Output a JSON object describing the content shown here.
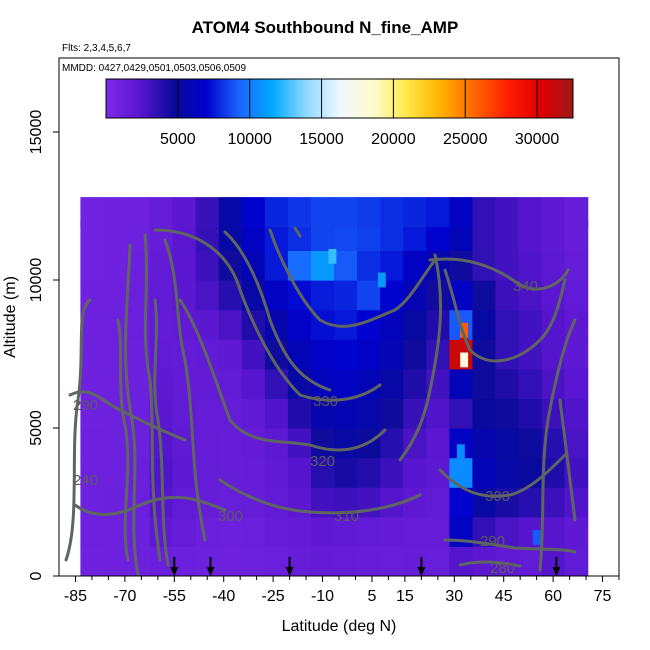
{
  "title": "ATOM4 Southbound N_fine_AMP",
  "flights": "Flts: 2,3,4,5,6,7",
  "chart_data": {
    "type": "heatmap",
    "title": "ATOM4 Southbound N_fine_AMP",
    "xlabel": "Latitude (deg N)",
    "ylabel": "Altitude (m)",
    "xlim": [
      -90,
      80
    ],
    "ylim": [
      0,
      17500
    ],
    "x_ticks": [
      -85,
      -70,
      -55,
      -40,
      -25,
      -10,
      5,
      15,
      30,
      45,
      60,
      75
    ],
    "y_ticks": [
      0,
      5000,
      10000,
      15000
    ],
    "legend_text": "MMDD: 0427,0429,0501,0503,0506,0509",
    "colorbar": {
      "range": [
        0,
        32500
      ],
      "ticks": [
        5000,
        10000,
        15000,
        20000,
        25000,
        30000
      ],
      "colors": [
        "#7b2ae8",
        "#5a16d0",
        "#0a0a9a",
        "#0000cc",
        "#1a66ff",
        "#00aaff",
        "#8fd8ff",
        "#f0f8ff",
        "#fffbd0",
        "#ffe94a",
        "#ffb300",
        "#ff6a00",
        "#ff2000",
        "#e00000",
        "#a01818"
      ]
    },
    "contour_labels": [
      "290",
      "240",
      "300",
      "310",
      "320",
      "330",
      "340",
      "300",
      "290",
      "280"
    ],
    "flight_markers_lat": [
      -55,
      -44,
      -20,
      20,
      61
    ],
    "field": {
      "lat": [
        -80,
        -73,
        -66,
        -59,
        -52,
        -45,
        -38,
        -31,
        -24,
        -17,
        -10,
        -3,
        4,
        11,
        18,
        25,
        32,
        39,
        46,
        53,
        60,
        67
      ],
      "alt": [
        500,
        1500,
        2500,
        3500,
        4500,
        5500,
        6500,
        7500,
        8500,
        9500,
        10500,
        11500,
        12300
      ],
      "values": [
        [
          900,
          1000,
          1100,
          1300,
          1200,
          1100,
          1000,
          1100,
          1300,
          1500,
          1700,
          1600,
          1500,
          1400,
          1500,
          1400,
          2500,
          2200,
          1900,
          1800,
          2500,
          1800
        ],
        [
          1000,
          1100,
          1200,
          2000,
          1600,
          1300,
          1200,
          1300,
          1500,
          1700,
          2000,
          1900,
          1800,
          1700,
          1600,
          1600,
          6500,
          3500,
          2800,
          2500,
          2400,
          2000
        ],
        [
          1100,
          1200,
          1300,
          2400,
          1800,
          1500,
          1400,
          1500,
          1800,
          2200,
          3000,
          3200,
          3000,
          2500,
          2000,
          1800,
          7000,
          5000,
          4200,
          3800,
          3200,
          2600
        ],
        [
          1000,
          1100,
          1300,
          2600,
          2000,
          1600,
          1500,
          1600,
          1900,
          2500,
          3800,
          4200,
          3900,
          3200,
          2400,
          2100,
          10500,
          6000,
          5200,
          4800,
          4000,
          3000
        ],
        [
          1000,
          1100,
          1200,
          2500,
          1900,
          1600,
          1500,
          1700,
          2100,
          3000,
          4500,
          5000,
          4600,
          3800,
          2800,
          2300,
          6500,
          5500,
          5000,
          4500,
          3800,
          2800
        ],
        [
          900,
          1000,
          1200,
          2200,
          1800,
          1600,
          1600,
          1900,
          2600,
          4000,
          5500,
          5800,
          5400,
          4500,
          3300,
          2600,
          3500,
          4800,
          4500,
          4000,
          3200,
          2600
        ],
        [
          900,
          1000,
          1200,
          2000,
          1700,
          1700,
          1800,
          2400,
          3500,
          5000,
          6200,
          6500,
          6000,
          5200,
          4000,
          3000,
          6000,
          4500,
          4000,
          3500,
          2800,
          2300
        ],
        [
          900,
          1000,
          1200,
          1800,
          1700,
          1800,
          2000,
          3000,
          4500,
          6000,
          6800,
          7000,
          6600,
          5800,
          4500,
          3500,
          31000,
          4500,
          3500,
          3000,
          2500,
          2000
        ],
        [
          900,
          1000,
          1300,
          1700,
          1900,
          2200,
          2800,
          4000,
          5500,
          6800,
          7300,
          7500,
          7000,
          6200,
          5000,
          4000,
          9000,
          5000,
          3500,
          3000,
          2500,
          2000
        ],
        [
          900,
          1000,
          1300,
          1800,
          2200,
          2800,
          3800,
          5200,
          6500,
          7200,
          7600,
          7800,
          8500,
          7000,
          5800,
          4500,
          6500,
          4500,
          3200,
          2800,
          2300,
          1800
        ],
        [
          800,
          900,
          1200,
          1700,
          2300,
          3200,
          4500,
          6000,
          7500,
          9500,
          11000,
          9000,
          8000,
          7500,
          6500,
          5500,
          4500,
          3500,
          3000,
          2600,
          2100,
          1600
        ],
        [
          800,
          900,
          1100,
          1600,
          2300,
          3400,
          5000,
          6500,
          7500,
          8000,
          8500,
          8600,
          8400,
          8000,
          7500,
          7000,
          6000,
          3500,
          3000,
          2500,
          2000,
          1500
        ],
        [
          800,
          900,
          1000,
          1500,
          2200,
          3300,
          5200,
          7000,
          7800,
          8200,
          8500,
          8500,
          8300,
          8000,
          7800,
          7500,
          6500,
          3500,
          3000,
          2500,
          2000,
          1500
        ]
      ]
    },
    "hotspots": [
      {
        "lat": 33,
        "alt": 7800,
        "value": 31000
      },
      {
        "lat": 33,
        "alt": 8300,
        "value": 26000
      },
      {
        "lat": 33,
        "alt": 7300,
        "value": 18000
      },
      {
        "lat": 32,
        "alt": 4200,
        "value": 10500
      },
      {
        "lat": -7,
        "alt": 10800,
        "value": 12500
      },
      {
        "lat": 8,
        "alt": 10000,
        "value": 11000
      },
      {
        "lat": 55,
        "alt": 1300,
        "value": 9000
      }
    ]
  }
}
